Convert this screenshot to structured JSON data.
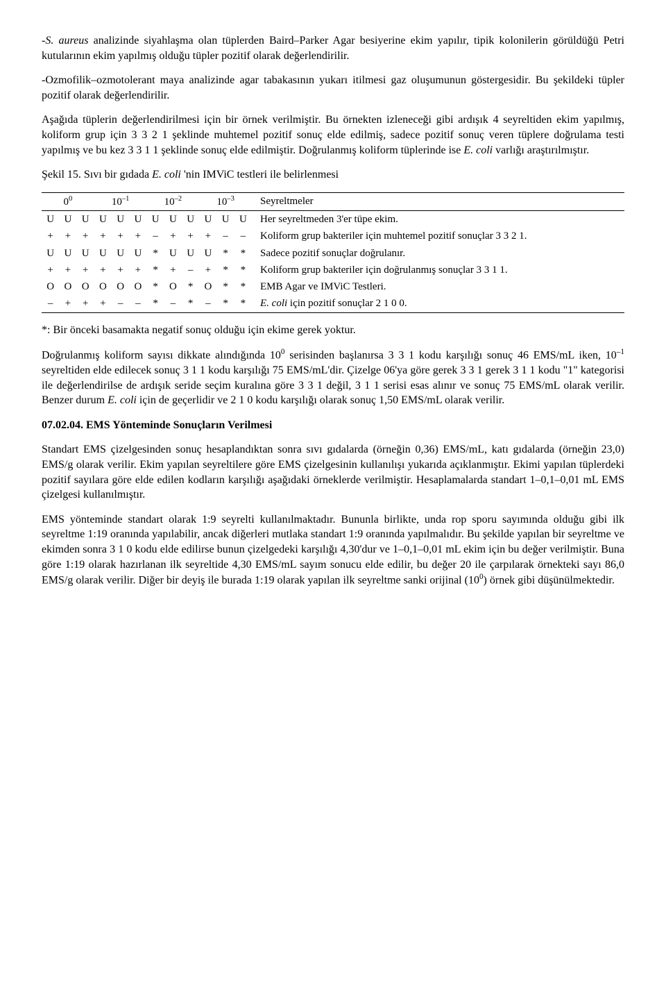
{
  "paragraphs": {
    "p1_a": "-",
    "p1_b": "S. aureus",
    "p1_c": " analizinde siyahlaşma olan tüplerden Baird–Parker Agar besiyerine ekim yapılır, tipik kolonilerin görüldüğü Petri kutularının ekim yapılmış olduğu tüpler pozitif olarak değerlendirilir.",
    "p2": "-Ozmofilik–ozmotolerant maya analizinde agar tabakasının yukarı itilmesi gaz oluşumunun göstergesidir. Bu şekildeki tüpler pozitif olarak değerlendirilir.",
    "p3_a": "Aşağıda tüplerin değerlendirilmesi için bir örnek verilmiştir. Bu örnekten izleneceği gibi ardışık 4 seyreltiden ekim yapılmış, koliform grup için 3 3 2 1 şeklinde muhtemel pozitif sonuç elde edilmiş, sadece pozitif sonuç veren tüplere doğrulama testi yapılmış ve bu kez 3 3 1 1 şeklinde sonuç elde edilmiştir. Doğrulanmış koliform tüplerinde ise ",
    "p3_b": "E. coli",
    "p3_c": " varlığı araştırılmıştır.",
    "p4_a": "Şekil 15. Sıvı bir gıdada ",
    "p4_b": "E. coli",
    "p4_c": " 'nin IMViC testleri ile belirlenmesi",
    "p5": "*: Bir önceki basamakta negatif sonuç olduğu için ekime gerek yoktur.",
    "p6_a": "Doğrulanmış koliform sayısı dikkate alındığında 10",
    "p6_sup1": "0",
    "p6_b": " serisinden başlanırsa 3 3 1 kodu karşılığı sonuç 46 EMS/mL iken, 10",
    "p6_sup2": "–1",
    "p6_c": " seyreltiden elde edilecek sonuç 3 1 1 kodu karşılığı 75 EMS/mL'dir. Çizelge 06'ya göre gerek 3 3 1 gerek 3 1 1 kodu \"1\" kategorisi ile değerlendirilse de ardışık seride seçim kuralına göre 3 3 1 değil, 3 1 1 serisi esas alınır ve sonuç 75 EMS/mL olarak verilir. Benzer durum ",
    "p6_d": "E. coli",
    "p6_e": " için de geçerlidir ve 2 1 0 kodu karşılığı olarak sonuç 1,50 EMS/mL olarak verilir.",
    "h1": "07.02.04. EMS Yönteminde Sonuçların Verilmesi",
    "p7": "Standart EMS çizelgesinden sonuç hesaplandıktan sonra sıvı gıdalarda (örneğin 0,36) EMS/mL, katı gıdalarda (örneğin 23,0) EMS/g olarak verilir. Ekim yapılan seyreltilere göre EMS çizelgesinin kullanılışı yukarıda açıklanmıştır. Ekimi yapılan tüplerdeki pozitif sayılara göre elde edilen kodların karşılığı aşağıdaki örneklerde verilmiştir. Hesaplamalarda standart 1–0,1–0,01 mL EMS çizelgesi kullanılmıştır.",
    "p8_a": "EMS yönteminde standart olarak 1:9 seyrelti kullanılmaktadır. Bununla birlikte, unda rop sporu sayımında olduğu gibi ilk seyreltme 1:19 oranında yapılabilir, ancak diğerleri mutlaka standart 1:9 oranında yapılmalıdır. Bu şekilde yapılan bir seyreltme ve ekimden sonra 3 1 0 kodu elde edilirse bunun çizelgedeki karşılığı 4,30'dur ve 1–0,1–0,01 mL ekim için bu değer verilmiştir. Buna göre 1:19 olarak hazırlanan ilk seyreltide 4,30 EMS/mL sayım sonucu elde edilir, bu değer 20 ile çarpılarak örnekteki sayı 86,0 EMS/g olarak verilir. Diğer bir deyiş ile burada 1:19 olarak yapılan ilk seyreltme sanki orijinal (10",
    "p8_sup": "0",
    "p8_b": ") örnek gibi düşünülmektedir."
  },
  "table": {
    "header_dilutions": [
      "0",
      "10",
      "10",
      "10"
    ],
    "header_sups": [
      "0",
      "–1",
      "–2",
      "–3"
    ],
    "header_label": "Seyreltmeler",
    "rows": [
      {
        "cells": [
          "U",
          "U",
          "U",
          "U",
          "U",
          "U",
          "U",
          "U",
          "U",
          "U",
          "U",
          "U"
        ],
        "desc": "Her seyreltmeden 3'er tüpe ekim."
      },
      {
        "cells": [
          "+",
          "+",
          "+",
          "+",
          "+",
          "+",
          "–",
          "+",
          "+",
          "+",
          "–",
          "–"
        ],
        "desc": "Koliform grup bakteriler için muhtemel pozitif sonuçlar 3 3 2 1."
      },
      {
        "cells": [
          "U",
          "U",
          "U",
          "U",
          "U",
          "U",
          "*",
          "U",
          "U",
          "U",
          "*",
          "*"
        ],
        "desc": "Sadece pozitif sonuçlar doğrulanır."
      },
      {
        "cells": [
          "+",
          "+",
          "+",
          "+",
          "+",
          "+",
          "*",
          "+",
          "–",
          "+",
          "*",
          "*"
        ],
        "desc": "Koliform grup bakteriler için doğrulanmış sonuçlar 3 3 1 1."
      },
      {
        "cells": [
          "O",
          "O",
          "O",
          "O",
          "O",
          "O",
          "*",
          "O",
          "*",
          "O",
          "*",
          "*"
        ],
        "desc": "EMB Agar ve IMViC Testleri."
      },
      {
        "cells": [
          "–",
          "+",
          "+",
          "+",
          "–",
          "–",
          "*",
          "–",
          "*",
          "–",
          "*",
          "*"
        ],
        "desc_italic_prefix": "E. coli",
        "desc_rest": " için pozitif sonuçlar 2 1 0 0."
      }
    ]
  }
}
